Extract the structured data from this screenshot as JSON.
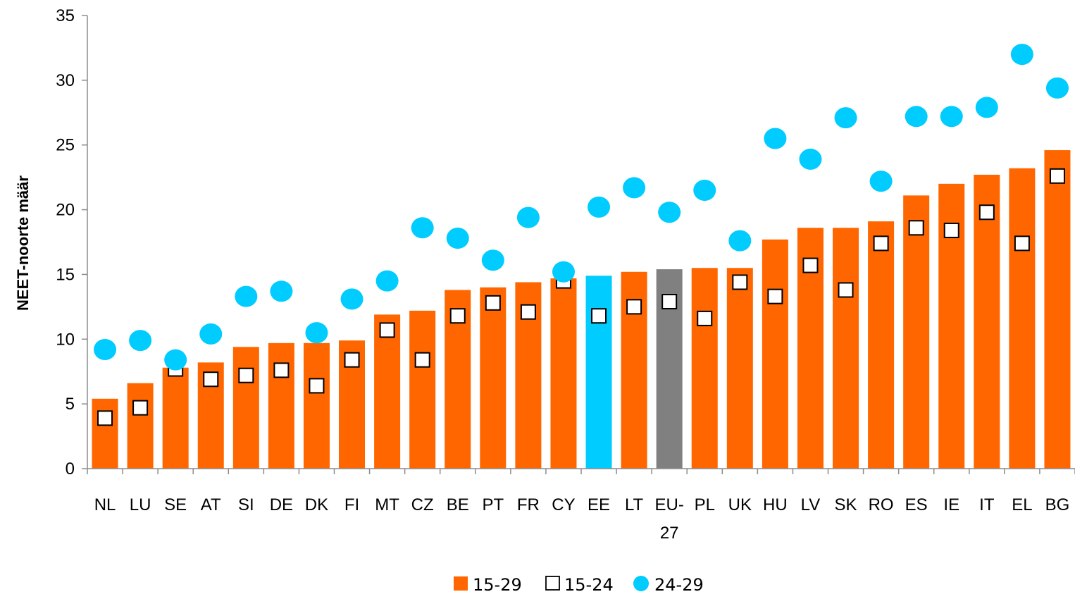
{
  "chart_data": {
    "type": "bar",
    "ylabel": "NEET-noorte määr",
    "xlabel": "",
    "ylim": [
      0,
      35
    ],
    "yticks": [
      0,
      5,
      10,
      15,
      20,
      25,
      30,
      35
    ],
    "grid": false,
    "legend_position": "bottom-center",
    "categories": [
      "NL",
      "LU",
      "SE",
      "AT",
      "SI",
      "DE",
      "DK",
      "FI",
      "MT",
      "CZ",
      "BE",
      "PT",
      "FR",
      "CY",
      "EE",
      "LT",
      "EU-27",
      "PL",
      "UK",
      "HU",
      "LV",
      "SK",
      "RO",
      "ES",
      "IE",
      "IT",
      "EL",
      "BG"
    ],
    "series": [
      {
        "name": "15-29",
        "kind": "bar",
        "color": "#ff6600",
        "values": [
          5.4,
          6.6,
          7.8,
          8.2,
          9.4,
          9.7,
          9.7,
          9.9,
          11.9,
          12.2,
          13.8,
          14.0,
          14.4,
          14.7,
          14.9,
          15.2,
          15.4,
          15.5,
          15.5,
          17.7,
          18.6,
          18.6,
          19.1,
          21.1,
          22.0,
          22.7,
          23.2,
          24.6
        ],
        "highlight": {
          "EE": "#00ccff",
          "EU-27": "#808080"
        }
      },
      {
        "name": "15-24",
        "kind": "marker-square",
        "color": "#ffffff",
        "values": [
          3.9,
          4.7,
          7.7,
          6.9,
          7.2,
          7.6,
          6.4,
          8.4,
          10.7,
          8.4,
          11.8,
          12.8,
          12.1,
          14.5,
          11.8,
          12.5,
          12.9,
          11.6,
          14.4,
          13.3,
          15.7,
          13.8,
          17.4,
          18.6,
          18.4,
          19.8,
          17.4,
          22.6
        ]
      },
      {
        "name": "24-29",
        "kind": "marker-circle",
        "color": "#00ccff",
        "values": [
          9.2,
          9.9,
          8.4,
          10.4,
          13.3,
          13.7,
          10.5,
          13.1,
          14.5,
          18.6,
          17.8,
          16.1,
          19.4,
          15.2,
          20.2,
          21.7,
          19.8,
          21.5,
          17.6,
          25.5,
          23.9,
          27.1,
          22.2,
          27.2,
          27.2,
          27.9,
          32.0,
          29.4
        ]
      }
    ]
  }
}
